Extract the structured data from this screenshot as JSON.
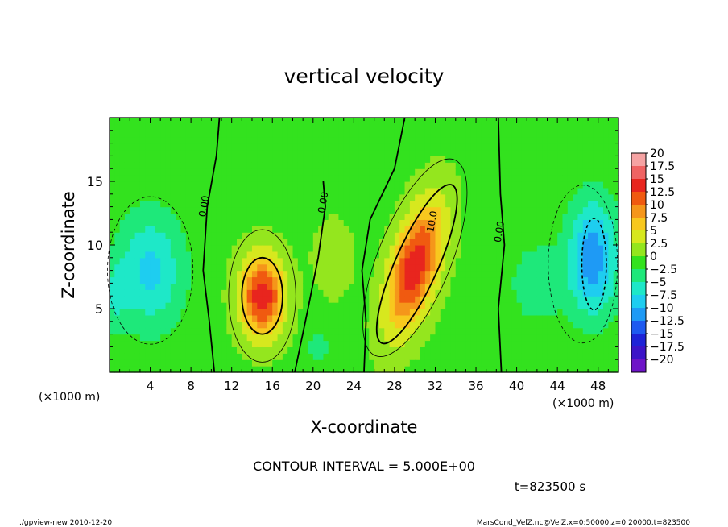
{
  "chart_data": {
    "type": "heatmap",
    "title": "vertical velocity",
    "xlabel": "X-coordinate",
    "ylabel": "Z-coordinate",
    "x_unit_label": "(×1000 m)",
    "x_unit_label_right": "(×1000 m)",
    "xlim": [
      0,
      50
    ],
    "ylim": [
      0,
      20
    ],
    "x_ticks": [
      4,
      8,
      12,
      16,
      20,
      24,
      28,
      32,
      36,
      40,
      44,
      48
    ],
    "y_ticks": [
      5,
      10,
      15
    ],
    "colorbar": {
      "levels": [
        "20",
        "17.5",
        "15",
        "12.5",
        "10",
        "7.5",
        "5",
        "2.5",
        "0",
        "−2.5",
        "−5",
        "−7.5",
        "−10",
        "−12.5",
        "−15",
        "−17.5",
        "−20"
      ],
      "colors": [
        "#f5a3a3",
        "#ef6363",
        "#e8251e",
        "#f05a10",
        "#f5961a",
        "#f8c81e",
        "#d7e81e",
        "#94e61e",
        "#33e21e",
        "#1ee87a",
        "#1ee8c8",
        "#1ecdf0",
        "#1e9af5",
        "#1e5af0",
        "#1e23d7",
        "#3c14c8",
        "#6e14c8"
      ]
    },
    "contour_labels": [
      {
        "text": "0.00",
        "x": 9.6,
        "z": 13.0
      },
      {
        "text": "0.00",
        "x": 21.3,
        "z": 13.3
      },
      {
        "text": "10.0",
        "x": 32.0,
        "z": 11.8
      },
      {
        "text": "0.00",
        "x": 38.6,
        "z": 11.0
      }
    ],
    "features": [
      {
        "name": "updraft",
        "x_center": 15,
        "z_center": 6,
        "peak": 15
      },
      {
        "name": "updraft",
        "x_center": 30,
        "z_center": 8,
        "peak": 15
      },
      {
        "name": "downdraft",
        "x_center": 4,
        "z_center": 8,
        "peak": -7.5
      },
      {
        "name": "downdraft",
        "x_center": 47,
        "z_center": 8,
        "peak": -12.5
      }
    ]
  },
  "annotations": {
    "contour_interval": "CONTOUR INTERVAL = 5.000E+00",
    "time": "t=823500 s",
    "footer_left": "./gpview-new  2010-12-20",
    "footer_right": "MarsCond_VelZ.nc@VelZ,x=0:50000,z=0:20000,t=823500"
  }
}
